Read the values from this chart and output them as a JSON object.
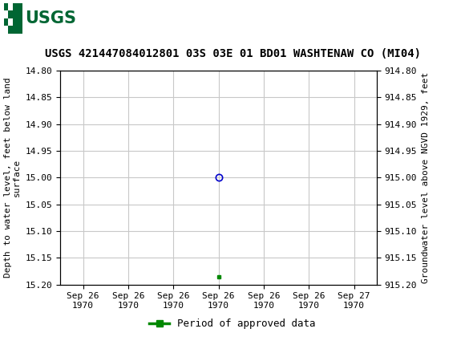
{
  "title": "USGS 421447084012801 03S 03E 01 BD01 WASHTENAW CO (MI04)",
  "ylabel_left": "Depth to water level, feet below land\nsurface",
  "ylabel_right": "Groundwater level above NGVD 1929, feet",
  "ylim_left": [
    14.8,
    15.2
  ],
  "ylim_right": [
    915.2,
    914.8
  ],
  "yticks_left": [
    14.8,
    14.85,
    14.9,
    14.95,
    15.0,
    15.05,
    15.1,
    15.15,
    15.2
  ],
  "yticks_right": [
    915.2,
    915.15,
    915.1,
    915.05,
    915.0,
    914.95,
    914.9,
    914.85,
    914.8
  ],
  "xtick_labels": [
    "Sep 26\n1970",
    "Sep 26\n1970",
    "Sep 26\n1970",
    "Sep 26\n1970",
    "Sep 26\n1970",
    "Sep 26\n1970",
    "Sep 27\n1970"
  ],
  "point_blue_x": 3.0,
  "point_blue_y": 15.0,
  "point_green_x": 3.0,
  "point_green_y": 15.185,
  "grid_color": "#c8c8c8",
  "plot_bg_color": "#ffffff",
  "fig_bg_color": "#ffffff",
  "header_bg_color": "#006633",
  "title_fontsize": 10,
  "axis_label_fontsize": 8,
  "tick_fontsize": 8,
  "legend_label": "Period of approved data",
  "legend_color": "#008800",
  "blue_point_color": "#0000cc",
  "num_xticks": 7,
  "xlim": [
    -0.5,
    6.5
  ]
}
